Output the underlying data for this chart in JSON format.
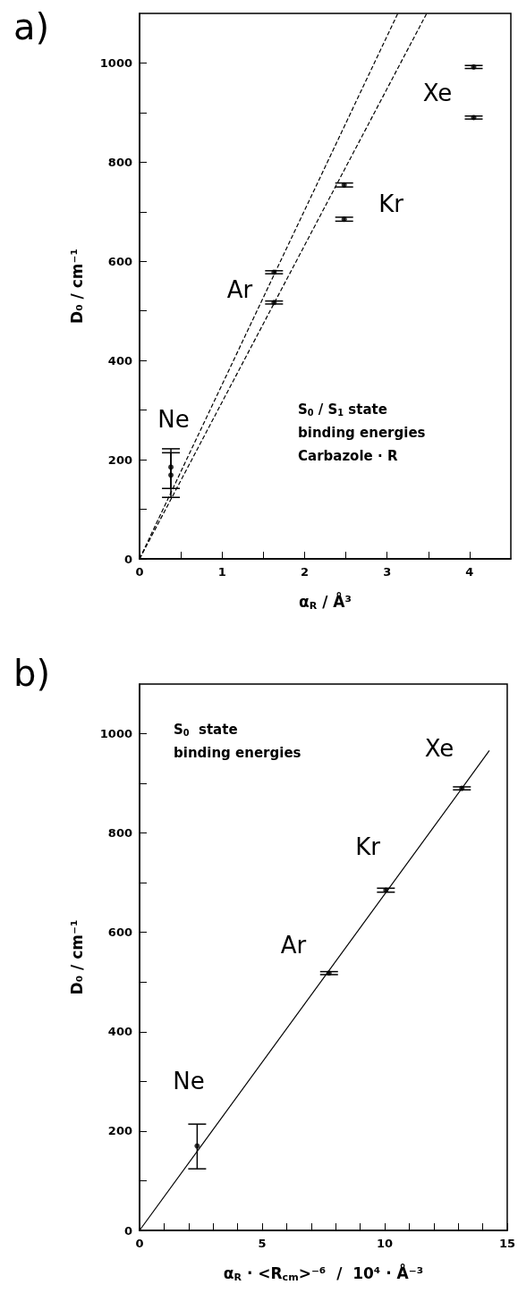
{
  "chart_data": [
    {
      "type": "scatter",
      "title": "a)",
      "xlabel": "α$_{R}$ / Å³",
      "ylabel": "D₀ / cm⁻¹",
      "xlim": [
        0,
        4.5
      ],
      "ylim": [
        0,
        1100
      ],
      "xticks": [
        0,
        {
          "value": 0.5,
          "label": null
        },
        1,
        {
          "value": 1.5,
          "label": null
        },
        2,
        {
          "value": 2.5,
          "label": null
        },
        3,
        {
          "value": 3.5,
          "label": null
        },
        4
      ],
      "yticks": [
        0,
        {
          "value": 100,
          "label": null
        },
        200,
        {
          "value": 300,
          "label": null
        },
        400,
        {
          "value": 500,
          "label": null
        },
        600,
        {
          "value": 700,
          "label": null
        },
        800,
        {
          "value": 900,
          "label": null
        },
        1000
      ],
      "marker": "circle",
      "grid": false,
      "series": [
        {
          "color": "#000000",
          "x": [
            0.38,
            1.63,
            2.48,
            4.05
          ],
          "values": [
            185,
            578,
            754,
            992
          ],
          "errors": [
            [
              142,
              222
            ],
            3,
            4,
            3
          ]
        },
        {
          "color": "#000000",
          "x": [
            0.38,
            1.63,
            2.48,
            4.05
          ],
          "values": [
            169,
            517,
            685,
            890
          ],
          "errors": [
            [
              124,
              214
            ],
            3,
            4,
            3
          ]
        },
        {
          "type": "line",
          "marker": "none",
          "color": "#000000",
          "line_style": "dashed",
          "x": [
            0,
            3.13
          ],
          "values": [
            0,
            1100
          ]
        },
        {
          "type": "line",
          "marker": "none",
          "color": "#000000",
          "line_style": "dashed",
          "x": [
            0,
            3.48
          ],
          "values": [
            0,
            1100
          ]
        }
      ],
      "annotations": [
        "Ne",
        "Ar",
        "Kr",
        "Xe",
        "S$_{0}$ / S$_{1}$ state\nbinding energies\nCarbazole · R"
      ]
    },
    {
      "type": "scatter",
      "title": "b)",
      "xlabel": "α$_{R}$ · <R$_{cm}$>⁻⁶  /  10⁴ · Å⁻³",
      "ylabel": "D₀ / cm⁻¹",
      "xlim": [
        0,
        15
      ],
      "ylim": [
        0,
        1100
      ],
      "xticks": [
        0,
        {
          "value": 1,
          "label": null
        },
        {
          "value": 2,
          "label": null
        },
        {
          "value": 3,
          "label": null
        },
        {
          "value": 4,
          "label": null
        },
        5,
        {
          "value": 6,
          "label": null
        },
        {
          "value": 7,
          "label": null
        },
        {
          "value": 8,
          "label": null
        },
        {
          "value": 9,
          "label": null
        },
        10,
        {
          "value": 11,
          "label": null
        },
        {
          "value": 12,
          "label": null
        },
        {
          "value": 13,
          "label": null
        },
        {
          "value": 14,
          "label": null
        },
        15
      ],
      "yticks": [
        0,
        {
          "value": 100,
          "label": null
        },
        200,
        {
          "value": 300,
          "label": null
        },
        400,
        {
          "value": 500,
          "label": null
        },
        600,
        {
          "value": 700,
          "label": null
        },
        800,
        {
          "value": 900,
          "label": null
        },
        1000
      ],
      "marker": "circle",
      "grid": false,
      "series": [
        {
          "color": "#000000",
          "x": [
            2.35,
            7.73,
            10.05,
            13.15
          ],
          "values": [
            170,
            518,
            685,
            890
          ],
          "errors": [
            [
              124,
              214
            ],
            3,
            4,
            3
          ]
        },
        {
          "type": "line",
          "marker": "none",
          "color": "#000000",
          "line_style": "solid",
          "x": [
            0,
            14.27
          ],
          "values": [
            0,
            966
          ]
        }
      ],
      "annotations": [
        "Ne",
        "Ar",
        "Kr",
        "Xe",
        "S$_{0}$  state\nbinding energies"
      ]
    }
  ]
}
